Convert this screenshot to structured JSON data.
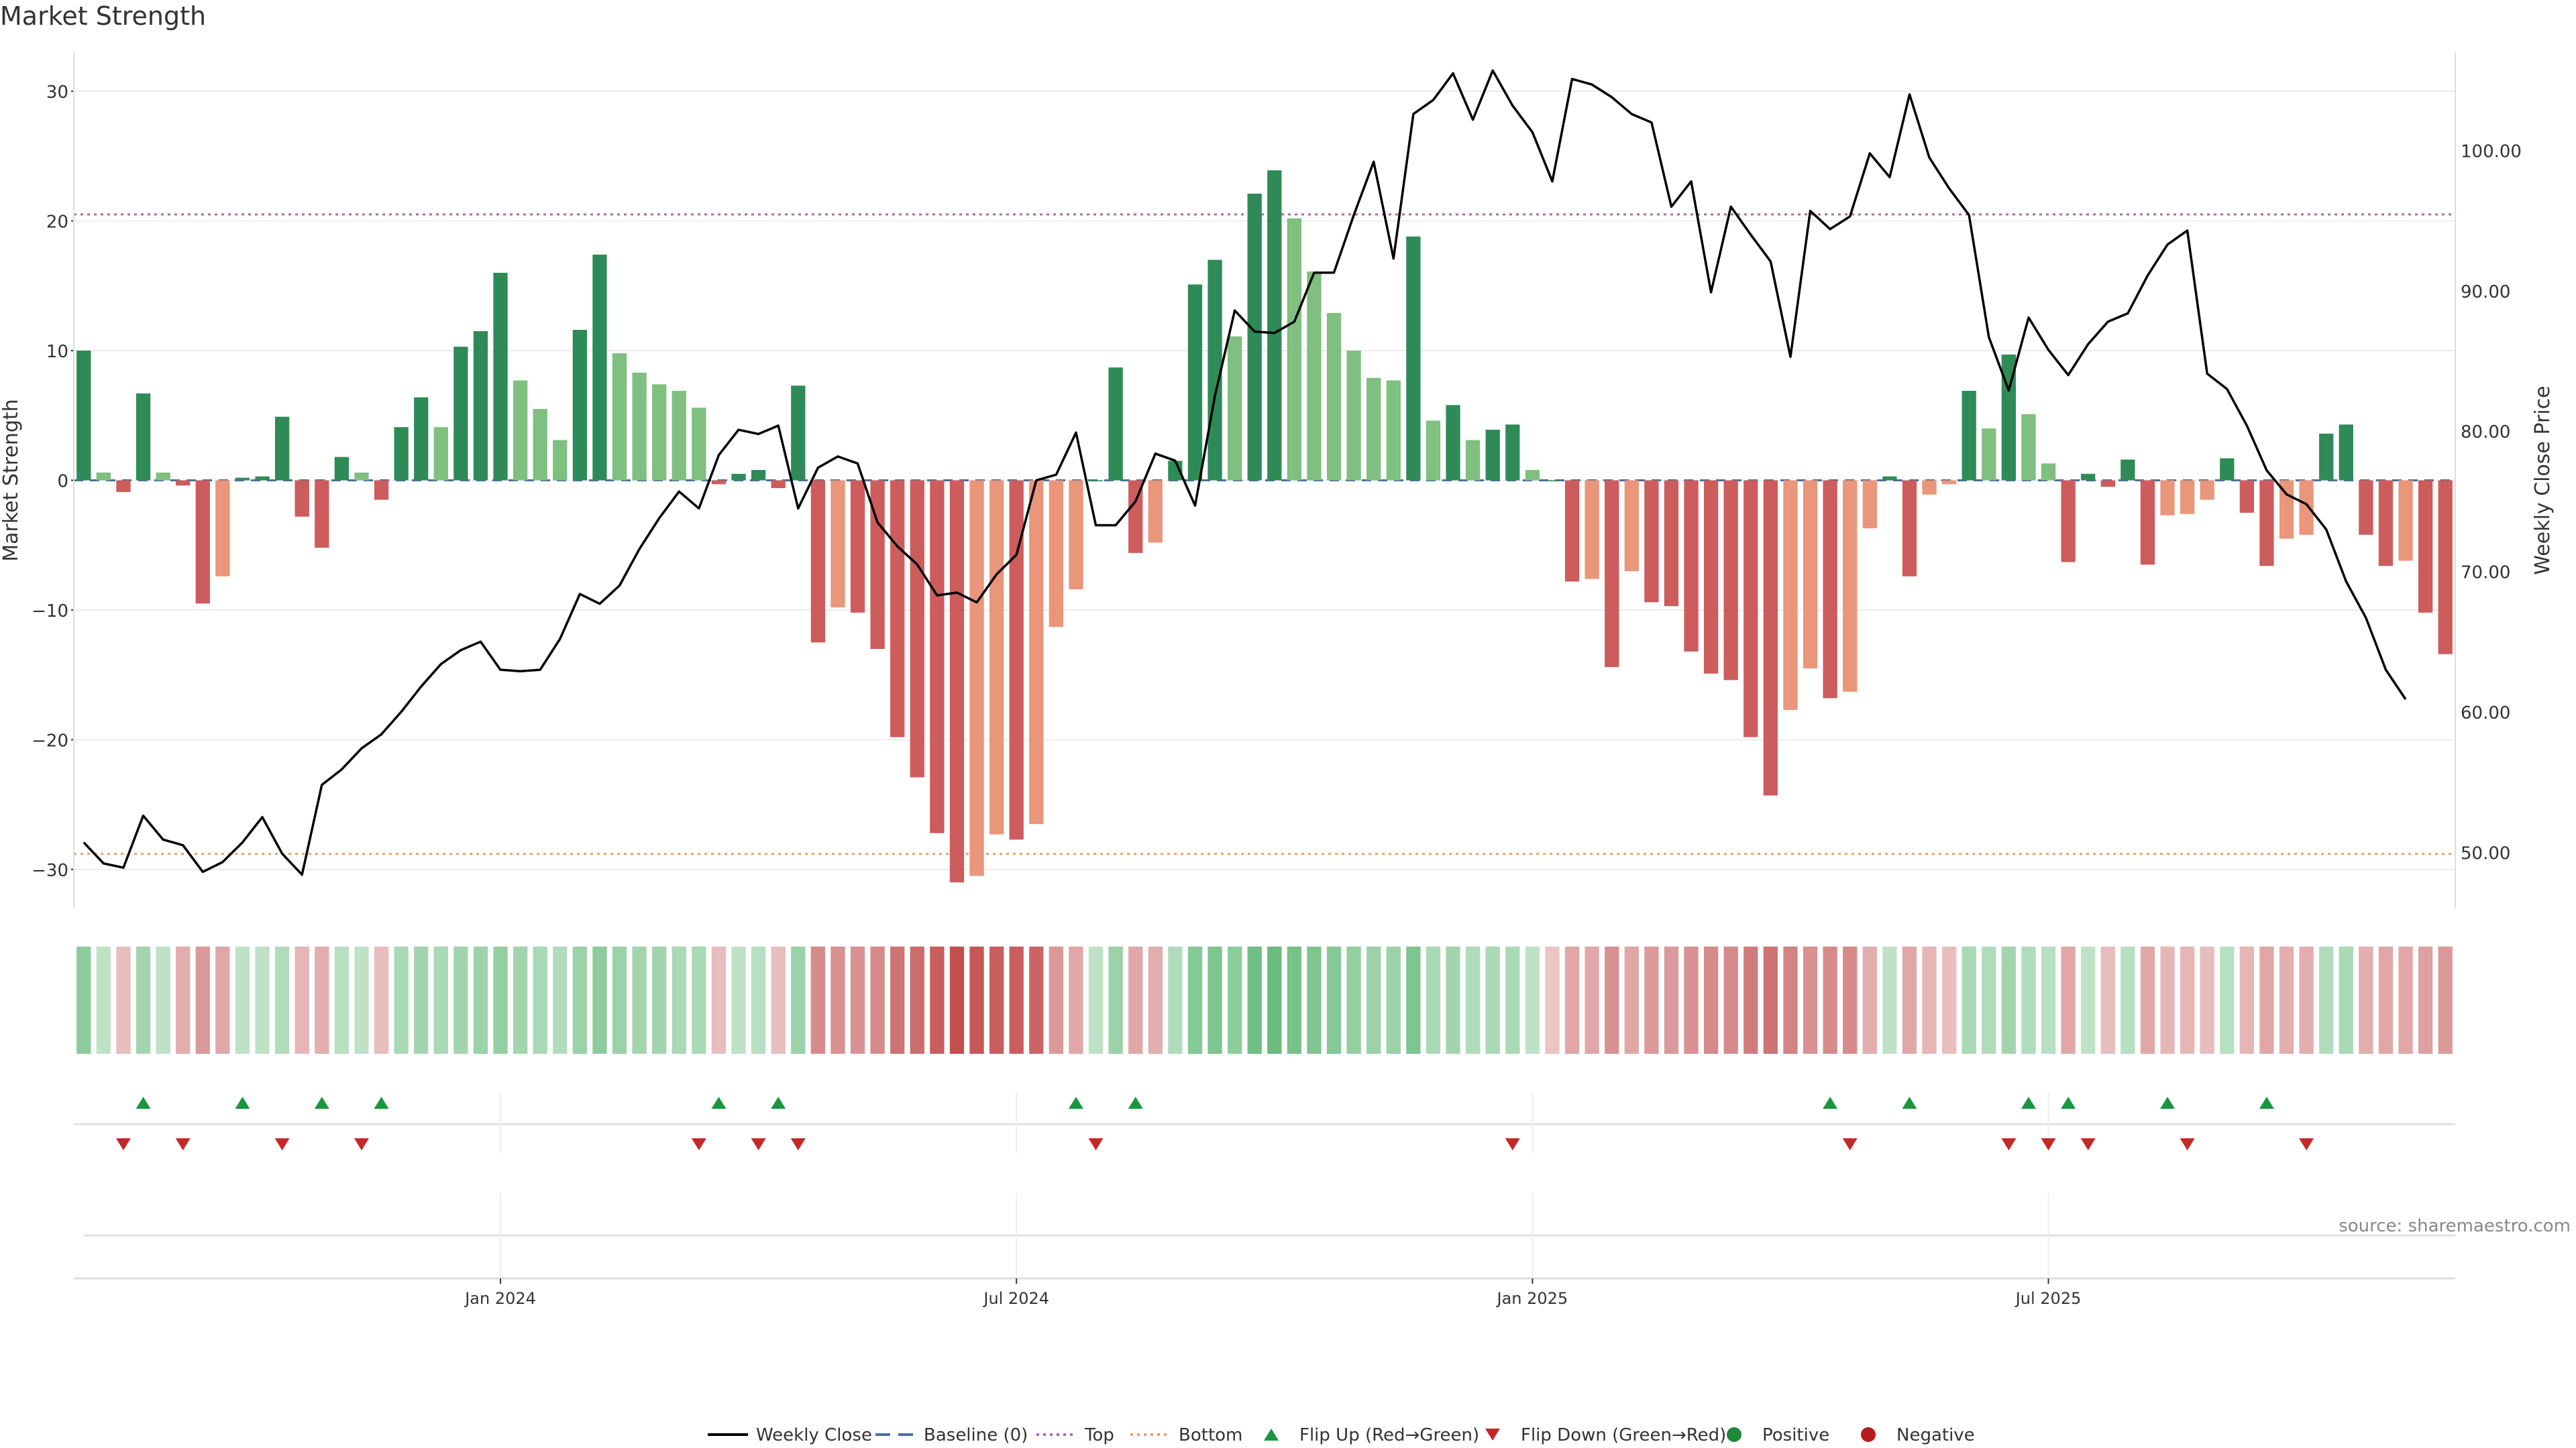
{
  "chart_data": {
    "title": "Market Strength",
    "type": "bar",
    "source": "source: sharemaestro.com",
    "y_left_label": "Market Strength",
    "y_right_label": "Weekly Close Price",
    "y_left_ticks": [
      "30",
      "20",
      "10",
      "0",
      "−10",
      "−20",
      "−30"
    ],
    "y_left_tick_values": [
      30,
      20,
      10,
      0,
      -10,
      -20,
      -30
    ],
    "y_right_ticks": [
      "100.00",
      "90.00",
      "80.00",
      "70.00",
      "60.00",
      "50.00"
    ],
    "y_right_tick_values": [
      100,
      90,
      80,
      70,
      60,
      50
    ],
    "y_left_range": [
      -33,
      33
    ],
    "y_right_range": [
      46,
      107
    ],
    "x_ticks": [
      {
        "label": "Jan 2024",
        "week": 21
      },
      {
        "label": "Jul 2024",
        "week": 47
      },
      {
        "label": "Jan 2025",
        "week": 73
      },
      {
        "label": "Jul 2025",
        "week": 99
      }
    ],
    "top_level": 20.5,
    "bottom_level": -28.8,
    "strength": [
      10,
      0.6,
      -0.9,
      6.7,
      0.6,
      -0.4,
      -9.5,
      -7.4,
      0.2,
      0.3,
      4.9,
      -2.8,
      -5.2,
      1.8,
      0.6,
      -1.5,
      4.1,
      6.4,
      4.1,
      10.3,
      11.5,
      16,
      7.7,
      5.5,
      3.1,
      11.6,
      17.4,
      9.8,
      8.3,
      7.4,
      6.9,
      5.6,
      -0.3,
      0.5,
      0.8,
      -0.6,
      7.3,
      -12.5,
      -9.8,
      -10.2,
      -13,
      -19.8,
      -22.9,
      -27.2,
      -31,
      -30.5,
      -27.3,
      -27.7,
      -26.5,
      -11.3,
      -8.4,
      0,
      8.7,
      -5.6,
      -4.8,
      1.5,
      15.1,
      17,
      11.1,
      22.1,
      23.9,
      20.2,
      16.1,
      12.9,
      10,
      7.9,
      7.7,
      18.8,
      4.6,
      5.8,
      3.1,
      3.9,
      4.3,
      0.8,
      0,
      -7.8,
      -7.6,
      -14.4,
      -7,
      -9.4,
      -9.7,
      -13.2,
      -14.9,
      -15.4,
      -19.8,
      -24.3,
      -17.7,
      -14.5,
      -16.8,
      -16.3,
      -3.7,
      0.3,
      -7.4,
      -1.1,
      -0.3,
      6.9,
      4,
      9.7,
      5.1,
      1.3,
      -6.3,
      0.5,
      -0.5,
      1.6,
      -6.5,
      -2.7,
      -2.6,
      -1.5,
      1.7,
      -2.5,
      -6.6,
      -4.5,
      -4.2,
      3.6,
      4.3,
      -4.2,
      -6.6,
      -6.2,
      -10.2,
      -13.4
    ],
    "bar_shade": [
      "d",
      "l",
      "d",
      "d",
      "l",
      "d",
      "d",
      "l",
      "d",
      "d",
      "d",
      "d",
      "d",
      "d",
      "l",
      "d",
      "d",
      "d",
      "l",
      "d",
      "d",
      "d",
      "l",
      "l",
      "l",
      "d",
      "d",
      "l",
      "l",
      "l",
      "l",
      "l",
      "d",
      "d",
      "d",
      "d",
      "d",
      "d",
      "l",
      "d",
      "d",
      "d",
      "d",
      "d",
      "d",
      "l",
      "l",
      "d",
      "l",
      "l",
      "l",
      "d",
      "d",
      "d",
      "l",
      "d",
      "d",
      "d",
      "l",
      "d",
      "d",
      "l",
      "l",
      "l",
      "l",
      "l",
      "l",
      "d",
      "l",
      "d",
      "l",
      "d",
      "d",
      "l",
      "d",
      "d",
      "l",
      "d",
      "l",
      "d",
      "d",
      "d",
      "d",
      "d",
      "d",
      "d",
      "l",
      "l",
      "d",
      "l",
      "l",
      "d",
      "d",
      "l",
      "l",
      "d",
      "l",
      "d",
      "l",
      "l",
      "d",
      "d",
      "d",
      "d",
      "d",
      "l",
      "l",
      "l",
      "d",
      "d",
      "d",
      "l",
      "l",
      "d",
      "d",
      "d",
      "d",
      "l",
      "d",
      "d"
    ],
    "weekly_close": [
      50.7,
      49.2,
      48.9,
      52.6,
      50.9,
      50.5,
      48.6,
      49.3,
      50.7,
      52.5,
      49.9,
      48.4,
      54.8,
      55.9,
      57.4,
      58.4,
      60,
      61.8,
      63.4,
      64.4,
      65,
      63,
      62.9,
      63,
      65.2,
      68.4,
      67.7,
      69,
      71.6,
      73.8,
      75.7,
      74.5,
      78.3,
      80.1,
      79.8,
      80.4,
      74.5,
      77.4,
      78.2,
      77.7,
      73.5,
      71.8,
      70.5,
      68.3,
      68.5,
      67.8,
      69.8,
      71.2,
      76.5,
      76.9,
      79.9,
      73.3,
      73.3,
      75,
      78.4,
      77.9,
      74.7,
      82.5,
      88.6,
      87.1,
      87,
      87.8,
      91.3,
      91.3,
      95.4,
      99.2,
      92.3,
      102.6,
      103.6,
      105.5,
      102.2,
      105.7,
      103.2,
      101.3,
      97.8,
      105.1,
      104.7,
      103.8,
      102.6,
      102,
      96,
      97.8,
      89.9,
      96,
      94,
      92.1,
      85.3,
      95.7,
      94.4,
      95.3,
      99.8,
      98.1,
      104,
      99.5,
      97.3,
      95.4,
      86.7,
      82.9,
      88.1,
      85.8,
      84,
      86.2,
      87.8,
      88.4,
      91.1,
      93.3,
      94.3,
      84.1,
      83,
      80.4,
      77.2,
      75.5,
      74.8,
      73,
      69.3,
      66.7,
      63,
      60.9
    ],
    "heatmap_cells": [
      0.55,
      0.2,
      -0.2,
      0.4,
      0.2,
      -0.3,
      -0.45,
      -0.35,
      0.2,
      0.2,
      0.3,
      -0.25,
      -0.3,
      0.25,
      0.2,
      -0.2,
      0.35,
      0.4,
      0.35,
      0.4,
      0.45,
      0.5,
      0.4,
      0.35,
      0.3,
      0.45,
      0.55,
      0.45,
      0.4,
      0.4,
      0.35,
      0.35,
      -0.2,
      0.2,
      0.25,
      -0.2,
      0.45,
      -0.55,
      -0.5,
      -0.5,
      -0.55,
      -0.7,
      -0.75,
      -0.85,
      -0.95,
      -0.9,
      -0.85,
      -0.85,
      -0.8,
      -0.45,
      -0.35,
      0.2,
      0.45,
      -0.35,
      -0.3,
      0.3,
      0.6,
      0.65,
      0.55,
      0.75,
      0.8,
      0.7,
      0.65,
      0.6,
      0.5,
      0.45,
      0.45,
      0.65,
      0.35,
      0.4,
      0.3,
      0.35,
      0.35,
      0.2,
      -0.15,
      -0.35,
      -0.35,
      -0.5,
      -0.35,
      -0.45,
      -0.45,
      -0.5,
      -0.55,
      -0.55,
      -0.65,
      -0.7,
      -0.6,
      -0.5,
      -0.55,
      -0.55,
      -0.3,
      0.2,
      -0.35,
      -0.25,
      -0.2,
      0.35,
      0.3,
      0.4,
      0.3,
      0.25,
      -0.35,
      0.2,
      -0.2,
      0.25,
      -0.35,
      -0.25,
      -0.25,
      -0.2,
      0.25,
      -0.25,
      -0.35,
      -0.3,
      -0.3,
      0.3,
      0.35,
      -0.3,
      -0.35,
      -0.35,
      -0.4,
      -0.45
    ],
    "flip_up_weeks": [
      3,
      8,
      12,
      15,
      32,
      35,
      50,
      53,
      88,
      92,
      98,
      100,
      105,
      110
    ],
    "flip_down_weeks": [
      2,
      5,
      10,
      14,
      31,
      34,
      36,
      51,
      72,
      89,
      97,
      99,
      101,
      106,
      112
    ],
    "legend": [
      {
        "label": "Weekly Close",
        "kind": "line",
        "color": "#000000"
      },
      {
        "label": "Baseline (0)",
        "kind": "dash",
        "color": "#4a6fa5"
      },
      {
        "label": "Top",
        "kind": "dot",
        "color": "#9b59b6"
      },
      {
        "label": "Bottom",
        "kind": "dot",
        "color": "#e8935f"
      },
      {
        "label": "Flip Up (Red→Green)",
        "kind": "tri-up",
        "color": "#1a9641"
      },
      {
        "label": "Flip Down (Green→Red)",
        "kind": "tri-down",
        "color": "#c62828"
      },
      {
        "label": "Positive",
        "kind": "circle",
        "color": "#1e8a3a"
      },
      {
        "label": "Negative",
        "kind": "circle",
        "color": "#b71c1c"
      }
    ],
    "colors": {
      "pos_dark": "#2e8b57",
      "pos_light": "#7fbf7f",
      "neg_dark": "#cd5c5c",
      "neg_light": "#e9967a",
      "top": "#b565a7",
      "bottom": "#f0a060",
      "baseline": "#4a6fa5",
      "flip_up": "#1a9641",
      "flip_down": "#c62828"
    }
  }
}
